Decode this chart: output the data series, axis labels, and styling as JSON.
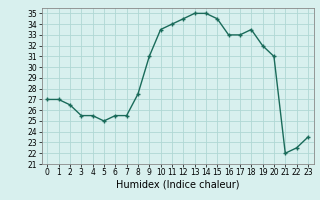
{
  "x": [
    0,
    1,
    2,
    3,
    4,
    5,
    6,
    7,
    8,
    9,
    10,
    11,
    12,
    13,
    14,
    15,
    16,
    17,
    18,
    19,
    20,
    21,
    22,
    23
  ],
  "y": [
    27,
    27,
    26.5,
    25.5,
    25.5,
    25,
    25.5,
    25.5,
    27.5,
    31,
    33.5,
    34,
    34.5,
    35,
    35,
    34.5,
    33,
    33,
    33.5,
    32,
    31,
    22,
    22.5,
    23.5
  ],
  "line_color": "#1a6b5a",
  "marker_color": "#1a6b5a",
  "bg_color": "#d8f0ee",
  "grid_color": "#b0d8d4",
  "xlabel": "Humidex (Indice chaleur)",
  "ylim": [
    21,
    35.5
  ],
  "xlim": [
    -0.5,
    23.5
  ],
  "yticks": [
    21,
    22,
    23,
    24,
    25,
    26,
    27,
    28,
    29,
    30,
    31,
    32,
    33,
    34,
    35
  ],
  "xticks": [
    0,
    1,
    2,
    3,
    4,
    5,
    6,
    7,
    8,
    9,
    10,
    11,
    12,
    13,
    14,
    15,
    16,
    17,
    18,
    19,
    20,
    21,
    22,
    23
  ],
  "tick_fontsize": 5.5,
  "xlabel_fontsize": 7
}
